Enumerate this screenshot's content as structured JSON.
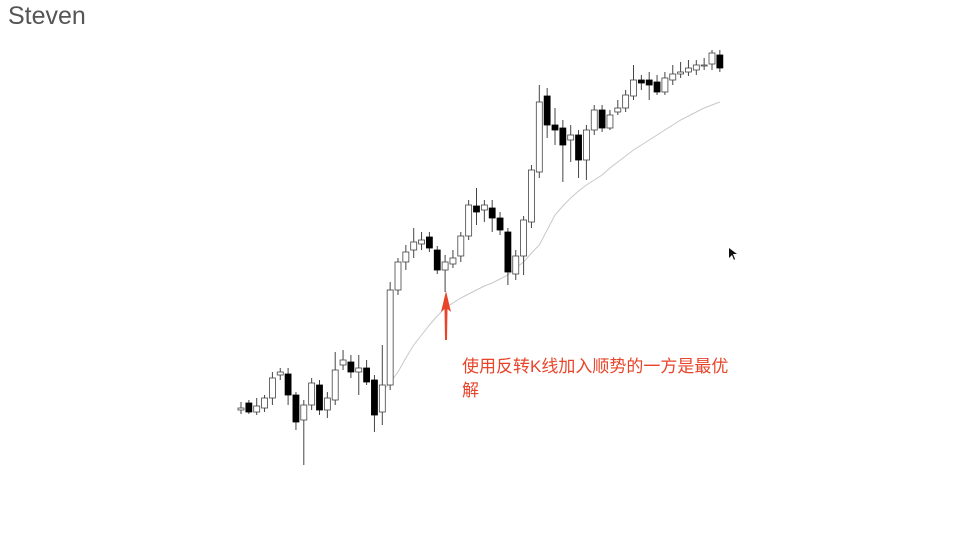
{
  "author": "Steven",
  "chart_data": {
    "type": "candlestick",
    "annotation": "使用反转K线加入顺势的一方是最优解",
    "ylim": [
      0,
      534
    ],
    "colors": {
      "up": "#ffffff",
      "down": "#000000",
      "outline": "#444444",
      "ma": "#c8c8c8",
      "annotation": "#e8442a"
    },
    "open": [
      124,
      131,
      122,
      126,
      136,
      159,
      160,
      139,
      114,
      129,
      149,
      124,
      134,
      169,
      172,
      162,
      166,
      154,
      122,
      149,
      244,
      272,
      284,
      290,
      297,
      284,
      264,
      270,
      278,
      298,
      328,
      324,
      326,
      316,
      302,
      260,
      278,
      312,
      362,
      438,
      409,
      406,
      394,
      399,
      374,
      404,
      424,
      406,
      422,
      426,
      438,
      454,
      454,
      452,
      442,
      454,
      460,
      462,
      464,
      468,
      470,
      479
    ],
    "high": [
      132,
      134,
      136,
      139,
      162,
      166,
      166,
      142,
      134,
      156,
      154,
      142,
      182,
      184,
      179,
      179,
      174,
      159,
      189,
      252,
      276,
      289,
      306,
      302,
      302,
      288,
      279,
      284,
      302,
      334,
      346,
      334,
      334,
      322,
      306,
      284,
      318,
      369,
      449,
      446,
      426,
      414,
      409,
      404,
      409,
      429,
      429,
      424,
      434,
      444,
      469,
      459,
      462,
      459,
      462,
      469,
      472,
      474,
      474,
      476,
      484,
      484
    ],
    "low": [
      120,
      120,
      119,
      122,
      129,
      154,
      129,
      104,
      69,
      124,
      119,
      116,
      129,
      164,
      156,
      139,
      149,
      102,
      109,
      144,
      239,
      264,
      276,
      284,
      282,
      260,
      242,
      266,
      272,
      294,
      309,
      312,
      302,
      299,
      249,
      254,
      259,
      306,
      356,
      396,
      389,
      352,
      372,
      356,
      354,
      399,
      402,
      404,
      419,
      422,
      434,
      444,
      434,
      439,
      439,
      449,
      456,
      458,
      459,
      464,
      464,
      462
    ],
    "close": [
      126,
      122,
      128,
      136,
      156,
      162,
      139,
      112,
      129,
      151,
      124,
      136,
      164,
      174,
      162,
      166,
      152,
      119,
      149,
      244,
      272,
      282,
      292,
      294,
      286,
      264,
      272,
      276,
      298,
      329,
      322,
      329,
      316,
      304,
      262,
      278,
      314,
      364,
      432,
      409,
      404,
      389,
      399,
      374,
      404,
      424,
      406,
      419,
      426,
      439,
      454,
      451,
      449,
      442,
      456,
      460,
      462,
      466,
      469,
      469,
      481,
      466
    ],
    "ma": [
      null,
      null,
      null,
      null,
      null,
      null,
      null,
      null,
      null,
      null,
      null,
      null,
      null,
      null,
      null,
      null,
      null,
      null,
      142,
      152,
      162,
      176,
      189,
      199,
      209,
      218,
      226,
      231,
      236,
      240,
      244,
      248,
      251,
      255,
      259,
      266,
      272,
      281,
      289,
      304,
      319,
      328,
      336,
      343,
      349,
      354,
      359,
      366,
      372,
      378,
      384,
      389,
      394,
      399,
      404,
      409,
      414,
      418,
      422,
      426,
      429,
      432
    ]
  }
}
